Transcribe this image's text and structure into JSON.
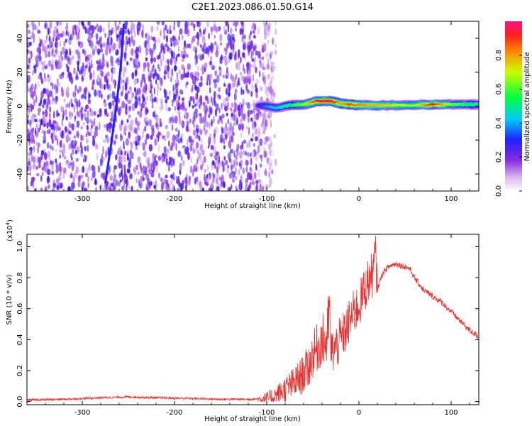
{
  "title": "C2E1.2023.086.01.50.G14",
  "colors": {
    "snr_line": "#e8302e",
    "frame": "#000000",
    "background": "#ffffff"
  },
  "chart_data": [
    {
      "type": "heatmap",
      "xlabel": "Height of straight line (km)",
      "ylabel": "Frequency (Hz)",
      "xlim": [
        -360,
        130
      ],
      "ylim": [
        -50,
        50
      ],
      "x_ticks": [
        -300,
        -200,
        -100,
        0,
        100
      ],
      "x_tick_labels": [
        "-300",
        "-200",
        "-100",
        "0",
        "100"
      ],
      "y_ticks": [
        -40,
        -20,
        0,
        20,
        40
      ],
      "y_tick_labels": [
        "-40",
        "-20",
        "0",
        "20",
        "40"
      ],
      "colorbar": {
        "label": "Normalized spectral amplitude",
        "range": [
          0,
          1
        ],
        "ticks": [
          0.0,
          0.2,
          0.4,
          0.6,
          0.8
        ],
        "tick_labels": [
          "0.0",
          "0.2",
          "0.4",
          "0.6",
          "0.8"
        ],
        "colormap": "rainbow (white-purple-blue-cyan-green-yellow-red-magenta)"
      },
      "noise_region_x": [
        -360,
        -90
      ],
      "signal_band": [
        {
          "x": -110,
          "f": 0.5,
          "amp": 0.25
        },
        {
          "x": -100,
          "f": 0.0,
          "amp": 0.35
        },
        {
          "x": -90,
          "f": -1.0,
          "amp": 0.4
        },
        {
          "x": -75,
          "f": 0.5,
          "amp": 0.5
        },
        {
          "x": -60,
          "f": 1.0,
          "amp": 0.6
        },
        {
          "x": -45,
          "f": 3.0,
          "amp": 0.85
        },
        {
          "x": -30,
          "f": 3.0,
          "amp": 0.9
        },
        {
          "x": -20,
          "f": 1.5,
          "amp": 0.7
        },
        {
          "x": -10,
          "f": 1.0,
          "amp": 0.8
        },
        {
          "x": 0,
          "f": 0.5,
          "amp": 0.75
        },
        {
          "x": 20,
          "f": 0.5,
          "amp": 0.7
        },
        {
          "x": 40,
          "f": 0.5,
          "amp": 0.65
        },
        {
          "x": 60,
          "f": 0.5,
          "amp": 0.6
        },
        {
          "x": 80,
          "f": 1.0,
          "amp": 0.85
        },
        {
          "x": 100,
          "f": 1.0,
          "amp": 0.6
        },
        {
          "x": 120,
          "f": 1.0,
          "amp": 0.5
        },
        {
          "x": 130,
          "f": 1.0,
          "amp": 0.45
        }
      ],
      "spurious_streak": [
        {
          "x": -275,
          "f": -45
        },
        {
          "x": -268,
          "f": -20
        },
        {
          "x": -262,
          "f": 5
        },
        {
          "x": -258,
          "f": 25
        },
        {
          "x": -255,
          "f": 48
        }
      ]
    },
    {
      "type": "line",
      "xlabel": "Height of straight line (km)",
      "ylabel": "SNR (10 * v/v)",
      "y_scale_label": "(x10",
      "y_scale_exponent": "4",
      "y_scale_suffix": ")",
      "xlim": [
        -360,
        130
      ],
      "ylim": [
        -0.02,
        1.08
      ],
      "x_ticks": [
        -300,
        -200,
        -100,
        0,
        100
      ],
      "x_tick_labels": [
        "-300",
        "-200",
        "-100",
        "0",
        "100"
      ],
      "y_ticks": [
        0.0,
        0.2,
        0.4,
        0.6,
        0.8,
        1.0
      ],
      "y_tick_labels": [
        "0.0",
        "0.2",
        "0.4",
        "0.6",
        "0.8",
        "1.0"
      ],
      "series": [
        {
          "x": [
            -360,
            -320,
            -280,
            -250,
            -220,
            -180,
            -150,
            -120,
            -100,
            -90,
            -80,
            -70,
            -60,
            -55,
            -50,
            -45,
            -40,
            -35,
            -32,
            -30,
            -25,
            -20,
            -15,
            -10,
            -5,
            0,
            5,
            10,
            15,
            18,
            20,
            25,
            30,
            35,
            40,
            45,
            50,
            55,
            60,
            65,
            70,
            75,
            80,
            90,
            100,
            110,
            120,
            130
          ],
          "y": [
            0.01,
            0.015,
            0.025,
            0.03,
            0.025,
            0.02,
            0.015,
            0.015,
            0.02,
            0.04,
            0.08,
            0.12,
            0.18,
            0.22,
            0.3,
            0.35,
            0.4,
            0.38,
            0.6,
            0.32,
            0.35,
            0.4,
            0.45,
            0.52,
            0.58,
            0.62,
            0.7,
            0.78,
            0.82,
            0.95,
            0.72,
            0.82,
            0.86,
            0.88,
            0.89,
            0.88,
            0.87,
            0.86,
            0.8,
            0.76,
            0.72,
            0.7,
            0.68,
            0.64,
            0.58,
            0.52,
            0.46,
            0.42
          ]
        }
      ]
    }
  ]
}
